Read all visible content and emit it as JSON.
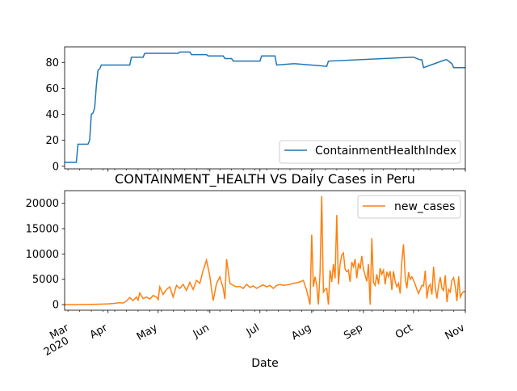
{
  "chart_data": [
    {
      "type": "line",
      "title": "",
      "xlabel": "",
      "ylabel": "",
      "x_range": [
        "2020-03-06",
        "2020-11-01"
      ],
      "ylim": [
        -2,
        92
      ],
      "y_ticks": [
        0,
        20,
        40,
        60,
        80
      ],
      "grid": false,
      "legend_loc": "lower right",
      "series": [
        {
          "name": "ContainmentHealthIndex",
          "color": "#1f77b4",
          "x": [
            "2020-03-06",
            "2020-03-13",
            "2020-03-14",
            "2020-03-20",
            "2020-03-21",
            "2020-03-22",
            "2020-03-23",
            "2020-03-24",
            "2020-03-25",
            "2020-03-26",
            "2020-03-27",
            "2020-03-28",
            "2020-04-14",
            "2020-04-15",
            "2020-04-22",
            "2020-04-23",
            "2020-05-13",
            "2020-05-14",
            "2020-05-20",
            "2020-05-21",
            "2020-05-30",
            "2020-05-31",
            "2020-06-09",
            "2020-06-10",
            "2020-06-14",
            "2020-06-15",
            "2020-07-01",
            "2020-07-02",
            "2020-07-03",
            "2020-07-10",
            "2020-07-11",
            "2020-07-21",
            "2020-07-22",
            "2020-08-10",
            "2020-08-11",
            "2020-09-30",
            "2020-10-01",
            "2020-10-05",
            "2020-10-06",
            "2020-10-07",
            "2020-10-20",
            "2020-10-21",
            "2020-10-24",
            "2020-10-25",
            "2020-11-01"
          ],
          "y": [
            3,
            3,
            17,
            17,
            20,
            40,
            41,
            45,
            62,
            74,
            75,
            78,
            78,
            84,
            84,
            87,
            87,
            88,
            88,
            86,
            86,
            85,
            85,
            83,
            83,
            81,
            81,
            85,
            85,
            85,
            78,
            79,
            79,
            77,
            81,
            84,
            84,
            82,
            82,
            76,
            82,
            82,
            79,
            76,
            76
          ]
        }
      ]
    },
    {
      "type": "line",
      "title": "CONTAINMENT_HEALTH VS Daily Cases in Peru",
      "xlabel": "Date",
      "ylabel": "",
      "x_range": [
        "2020-03-06",
        "2020-11-01"
      ],
      "x_ticks": [
        {
          "date": "2020-03-01",
          "label": "Mar",
          "label2": "2020"
        },
        {
          "date": "2020-04-01",
          "label": "Apr"
        },
        {
          "date": "2020-05-01",
          "label": "May"
        },
        {
          "date": "2020-06-01",
          "label": "Jun"
        },
        {
          "date": "2020-07-01",
          "label": "Jul"
        },
        {
          "date": "2020-08-01",
          "label": "Aug"
        },
        {
          "date": "2020-09-01",
          "label": "Sep"
        },
        {
          "date": "2020-10-01",
          "label": "Oct"
        },
        {
          "date": "2020-11-01",
          "label": "Nov"
        }
      ],
      "ylim": [
        -1100,
        22500
      ],
      "y_ticks": [
        0,
        5000,
        10000,
        15000,
        20000
      ],
      "grid": false,
      "legend_loc": "upper right",
      "series": [
        {
          "name": "new_cases",
          "color": "#ff7f0e",
          "x": [
            "2020-03-06",
            "2020-03-15",
            "2020-03-25",
            "2020-04-01",
            "2020-04-05",
            "2020-04-08",
            "2020-04-10",
            "2020-04-12",
            "2020-04-14",
            "2020-04-16",
            "2020-04-18",
            "2020-04-19",
            "2020-04-20",
            "2020-04-22",
            "2020-04-24",
            "2020-04-26",
            "2020-04-28",
            "2020-04-30",
            "2020-05-01",
            "2020-05-02",
            "2020-05-04",
            "2020-05-06",
            "2020-05-08",
            "2020-05-10",
            "2020-05-12",
            "2020-05-14",
            "2020-05-16",
            "2020-05-18",
            "2020-05-20",
            "2020-05-22",
            "2020-05-24",
            "2020-05-26",
            "2020-05-28",
            "2020-05-30",
            "2020-06-01",
            "2020-06-02",
            "2020-06-03",
            "2020-06-05",
            "2020-06-07",
            "2020-06-09",
            "2020-06-10",
            "2020-06-11",
            "2020-06-13",
            "2020-06-15",
            "2020-06-17",
            "2020-06-19",
            "2020-06-21",
            "2020-06-23",
            "2020-06-25",
            "2020-06-27",
            "2020-06-29",
            "2020-07-01",
            "2020-07-03",
            "2020-07-05",
            "2020-07-07",
            "2020-07-09",
            "2020-07-11",
            "2020-07-13",
            "2020-07-15",
            "2020-07-17",
            "2020-07-19",
            "2020-07-21",
            "2020-07-23",
            "2020-07-25",
            "2020-07-27",
            "2020-07-29",
            "2020-07-31",
            "2020-08-01",
            "2020-08-02",
            "2020-08-03",
            "2020-08-04",
            "2020-08-05",
            "2020-08-06",
            "2020-08-07",
            "2020-08-08",
            "2020-08-09",
            "2020-08-10",
            "2020-08-11",
            "2020-08-12",
            "2020-08-13",
            "2020-08-14",
            "2020-08-15",
            "2020-08-16",
            "2020-08-17",
            "2020-08-18",
            "2020-08-19",
            "2020-08-20",
            "2020-08-21",
            "2020-08-22",
            "2020-08-23",
            "2020-08-24",
            "2020-08-25",
            "2020-08-26",
            "2020-08-27",
            "2020-08-28",
            "2020-08-29",
            "2020-08-30",
            "2020-08-31",
            "2020-09-01",
            "2020-09-02",
            "2020-09-03",
            "2020-09-04",
            "2020-09-05",
            "2020-09-06",
            "2020-09-07",
            "2020-09-08",
            "2020-09-09",
            "2020-09-10",
            "2020-09-11",
            "2020-09-12",
            "2020-09-13",
            "2020-09-14",
            "2020-09-15",
            "2020-09-16",
            "2020-09-17",
            "2020-09-18",
            "2020-09-19",
            "2020-09-20",
            "2020-09-21",
            "2020-09-22",
            "2020-09-23",
            "2020-09-24",
            "2020-09-25",
            "2020-09-26",
            "2020-09-27",
            "2020-09-28",
            "2020-09-29",
            "2020-09-30",
            "2020-10-01",
            "2020-10-02",
            "2020-10-03",
            "2020-10-04",
            "2020-10-05",
            "2020-10-06",
            "2020-10-07",
            "2020-10-08",
            "2020-10-09",
            "2020-10-10",
            "2020-10-11",
            "2020-10-12",
            "2020-10-13",
            "2020-10-14",
            "2020-10-15",
            "2020-10-16",
            "2020-10-17",
            "2020-10-18",
            "2020-10-19",
            "2020-10-20",
            "2020-10-21",
            "2020-10-22",
            "2020-10-23",
            "2020-10-24",
            "2020-10-25",
            "2020-10-26",
            "2020-10-27",
            "2020-10-28",
            "2020-10-29",
            "2020-10-30",
            "2020-10-31",
            "2020-11-01"
          ],
          "y": [
            0,
            10,
            80,
            150,
            250,
            400,
            300,
            700,
            1400,
            800,
            1500,
            900,
            2300,
            1200,
            1500,
            1100,
            1800,
            1500,
            1000,
            3500,
            2000,
            3000,
            3500,
            1500,
            3800,
            3200,
            4000,
            2800,
            4400,
            3000,
            4800,
            4200,
            6800,
            8800,
            5600,
            3000,
            800,
            4200,
            5500,
            3200,
            1100,
            9000,
            4200,
            3800,
            3500,
            3600,
            3200,
            4000,
            3400,
            3700,
            3200,
            3600,
            3900,
            3500,
            3800,
            3200,
            3800,
            4000,
            3800,
            3900,
            4000,
            4200,
            4300,
            4500,
            4800,
            2800,
            0,
            13800,
            3500,
            5500,
            3800,
            0,
            6400,
            21400,
            2500,
            3000,
            3200,
            0,
            6800,
            4500,
            8000,
            5200,
            17700,
            4000,
            8000,
            9800,
            10200,
            7000,
            6500,
            6800,
            4500,
            8400,
            7500,
            9000,
            5200,
            8200,
            7000,
            9600,
            7000,
            5800,
            4600,
            8000,
            0,
            13100,
            4400,
            3800,
            6000,
            4000,
            7200,
            6000,
            6800,
            4000,
            6500,
            5500,
            6600,
            2900,
            6600,
            4600,
            3500,
            4200,
            2200,
            8600,
            11900,
            5400,
            3200,
            6400,
            5000,
            5500,
            4800,
            4000,
            3000,
            2200,
            3000,
            3800,
            3700,
            6700,
            1200,
            3500,
            4000,
            2000,
            7500,
            3500,
            1200,
            3800,
            5400,
            3200,
            2800,
            5800,
            500,
            3000,
            2500,
            4800,
            5300,
            3500,
            700,
            5600,
            1500,
            2200,
            2600,
            2500
          ]
        }
      ]
    }
  ]
}
